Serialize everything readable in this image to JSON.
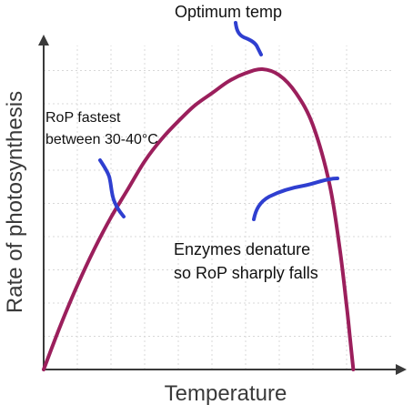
{
  "chart_data": {
    "type": "line",
    "title": "",
    "xlabel": "Temperature",
    "ylabel": "Rate of photosynthesis",
    "grid": true,
    "series": [
      {
        "color": "#9b1f5c",
        "points": [
          [
            0,
            0
          ],
          [
            5,
            1.1
          ],
          [
            10,
            2.1
          ],
          [
            15,
            3.0
          ],
          [
            20,
            3.8
          ],
          [
            25,
            4.5
          ],
          [
            30,
            5.2
          ],
          [
            35,
            5.75
          ],
          [
            40,
            6.2
          ],
          [
            45,
            6.6
          ],
          [
            50,
            6.9
          ],
          [
            55,
            7.2
          ],
          [
            60,
            7.4
          ],
          [
            65,
            7.5
          ],
          [
            70,
            7.35
          ],
          [
            75,
            6.9
          ],
          [
            80,
            6.1
          ],
          [
            85,
            4.6
          ],
          [
            88,
            3.0
          ],
          [
            90,
            1.6
          ],
          [
            91,
            0.8
          ],
          [
            92,
            0
          ]
        ]
      }
    ],
    "annotations": {
      "optimum": "Optimum temp",
      "fastest_line1": "RoP fastest",
      "fastest_line2": "between 30-40°C",
      "denature_line1": "Enzymes denature",
      "denature_line2": "so RoP sharply falls"
    },
    "colors": {
      "curve": "#9b1f5c",
      "ink": "#2f3fd0",
      "axis": "#3a3a3a",
      "grid": "#d8d8d8"
    }
  }
}
